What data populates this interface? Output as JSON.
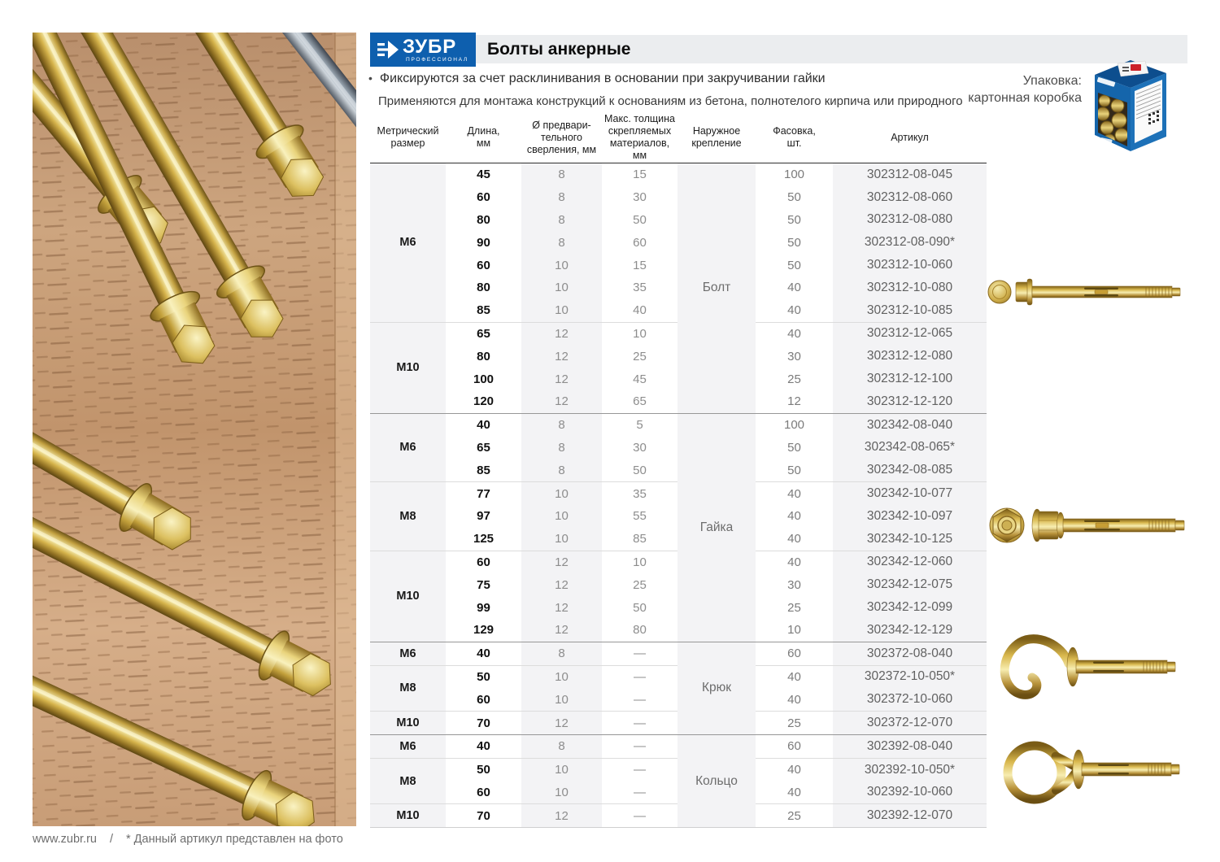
{
  "logo": {
    "text": "ЗУБР",
    "subtext": "ПРОФЕССИОНАЛ"
  },
  "header": {
    "title": "Болты анкерные"
  },
  "intro": {
    "marker": "•",
    "bullet": "Фиксируются за счет расклинивания в основании при закручивании гайки",
    "line2": "Применяются для монтажа конструкций к основаниям из бетона, полнотелого кирпича или природного камня"
  },
  "packaging": {
    "line1": "Упаковка:",
    "line2": "картонная коробка"
  },
  "table": {
    "columns": [
      "Метрический\nразмер",
      "Длина,\nмм",
      "Ø предвари-\nтельного\nсверления, мм",
      "Макс. толщина\nскрепляемых\nматериалов,\nмм",
      "Наружное\nкрепление",
      "Фасовка,\nшт.",
      "Артикул"
    ],
    "sections": [
      {
        "mount": "Болт",
        "groups": [
          {
            "size": "М6",
            "rows": [
              {
                "len": "45",
                "drill": "8",
                "max": "15",
                "pack": "100",
                "art": "302312-08-045"
              },
              {
                "len": "60",
                "drill": "8",
                "max": "30",
                "pack": "50",
                "art": "302312-08-060"
              },
              {
                "len": "80",
                "drill": "8",
                "max": "50",
                "pack": "50",
                "art": "302312-08-080"
              },
              {
                "len": "90",
                "drill": "8",
                "max": "60",
                "pack": "50",
                "art": "302312-08-090*"
              },
              {
                "len": "60",
                "drill": "10",
                "max": "15",
                "pack": "50",
                "art": "302312-10-060"
              },
              {
                "len": "80",
                "drill": "10",
                "max": "35",
                "pack": "40",
                "art": "302312-10-080"
              },
              {
                "len": "85",
                "drill": "10",
                "max": "40",
                "pack": "40",
                "art": "302312-10-085"
              }
            ]
          },
          {
            "size": "М10",
            "rows": [
              {
                "len": "65",
                "drill": "12",
                "max": "10",
                "pack": "40",
                "art": "302312-12-065"
              },
              {
                "len": "80",
                "drill": "12",
                "max": "25",
                "pack": "30",
                "art": "302312-12-080"
              },
              {
                "len": "100",
                "drill": "12",
                "max": "45",
                "pack": "25",
                "art": "302312-12-100"
              },
              {
                "len": "120",
                "drill": "12",
                "max": "65",
                "pack": "12",
                "art": "302312-12-120"
              }
            ]
          }
        ]
      },
      {
        "mount": "Гайка",
        "groups": [
          {
            "size": "М6",
            "rows": [
              {
                "len": "40",
                "drill": "8",
                "max": "5",
                "pack": "100",
                "art": "302342-08-040"
              },
              {
                "len": "65",
                "drill": "8",
                "max": "30",
                "pack": "50",
                "art": "302342-08-065*"
              },
              {
                "len": "85",
                "drill": "8",
                "max": "50",
                "pack": "50",
                "art": "302342-08-085"
              }
            ]
          },
          {
            "size": "М8",
            "rows": [
              {
                "len": "77",
                "drill": "10",
                "max": "35",
                "pack": "40",
                "art": "302342-10-077"
              },
              {
                "len": "97",
                "drill": "10",
                "max": "55",
                "pack": "40",
                "art": "302342-10-097"
              },
              {
                "len": "125",
                "drill": "10",
                "max": "85",
                "pack": "40",
                "art": "302342-10-125"
              }
            ]
          },
          {
            "size": "М10",
            "rows": [
              {
                "len": "60",
                "drill": "12",
                "max": "10",
                "pack": "40",
                "art": "302342-12-060"
              },
              {
                "len": "75",
                "drill": "12",
                "max": "25",
                "pack": "30",
                "art": "302342-12-075"
              },
              {
                "len": "99",
                "drill": "12",
                "max": "50",
                "pack": "25",
                "art": "302342-12-099"
              },
              {
                "len": "129",
                "drill": "12",
                "max": "80",
                "pack": "10",
                "art": "302342-12-129"
              }
            ]
          }
        ]
      },
      {
        "mount": "Крюк",
        "groups": [
          {
            "size": "М6",
            "rows": [
              {
                "len": "40",
                "drill": "8",
                "max": "—",
                "pack": "60",
                "art": "302372-08-040"
              }
            ]
          },
          {
            "size": "М8",
            "rows": [
              {
                "len": "50",
                "drill": "10",
                "max": "—",
                "pack": "40",
                "art": "302372-10-050*"
              },
              {
                "len": "60",
                "drill": "10",
                "max": "—",
                "pack": "40",
                "art": "302372-10-060"
              }
            ]
          },
          {
            "size": "М10",
            "rows": [
              {
                "len": "70",
                "drill": "12",
                "max": "—",
                "pack": "25",
                "art": "302372-12-070"
              }
            ]
          }
        ]
      },
      {
        "mount": "Кольцо",
        "groups": [
          {
            "size": "М6",
            "rows": [
              {
                "len": "40",
                "drill": "8",
                "max": "—",
                "pack": "60",
                "art": "302392-08-040"
              }
            ]
          },
          {
            "size": "М8",
            "rows": [
              {
                "len": "50",
                "drill": "10",
                "max": "—",
                "pack": "40",
                "art": "302392-10-050*"
              },
              {
                "len": "60",
                "drill": "10",
                "max": "—",
                "pack": "40",
                "art": "302392-10-060"
              }
            ]
          },
          {
            "size": "М10",
            "rows": [
              {
                "len": "70",
                "drill": "12",
                "max": "—",
                "pack": "25",
                "art": "302392-12-070"
              }
            ]
          }
        ]
      }
    ]
  },
  "footer": {
    "site": "www.zubr.ru",
    "divider": "/",
    "note": "* Данный артикул представлен на фото"
  },
  "colors": {
    "brand_blue": "#0e5fae",
    "titlebar_bg": "#ebedef",
    "gold": "#c9a23a"
  }
}
